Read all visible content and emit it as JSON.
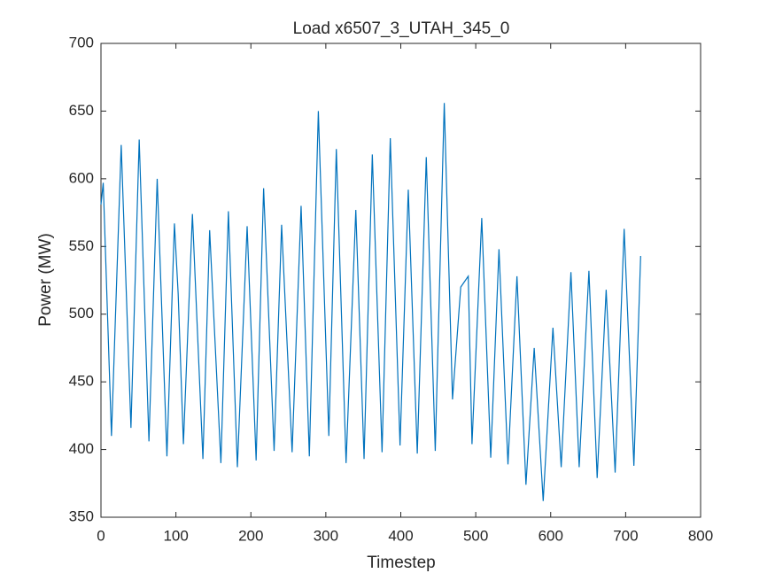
{
  "chart_data": {
    "type": "line",
    "title": "Load x6507_3_UTAH_345_0",
    "xlabel": "Timestep",
    "ylabel": "Power (MW)",
    "x": [
      0,
      3,
      14,
      27,
      40,
      51,
      64,
      75,
      88,
      98,
      103,
      110,
      122,
      136,
      145,
      160,
      170,
      182,
      195,
      207,
      217,
      231,
      241,
      255,
      267,
      278,
      290,
      304,
      314,
      327,
      340,
      351,
      362,
      375,
      386,
      399,
      410,
      422,
      434,
      446,
      458,
      469,
      480,
      490,
      495,
      508,
      520,
      531,
      543,
      555,
      567,
      578,
      590,
      603,
      614,
      627,
      638,
      651,
      662,
      674,
      686,
      698,
      711,
      720
    ],
    "series": [
      {
        "name": "Load",
        "color": "#0072bd",
        "values": [
          581,
          597,
          410,
          625,
          416,
          629,
          406,
          600,
          395,
          567,
          515,
          404,
          574,
          393,
          562,
          390,
          576,
          387,
          565,
          392,
          593,
          399,
          566,
          398,
          580,
          395,
          650,
          410,
          622,
          390,
          577,
          393,
          618,
          398,
          630,
          403,
          592,
          397,
          616,
          399,
          656,
          437,
          520,
          528,
          404,
          571,
          394,
          548,
          389,
          528,
          374,
          475,
          362,
          490,
          387,
          531,
          387,
          532,
          379,
          518,
          383,
          563,
          388,
          543
        ]
      }
    ],
    "xlim": [
      0,
      800
    ],
    "xticks": [
      0,
      100,
      200,
      300,
      400,
      500,
      600,
      700,
      800
    ],
    "ylim": [
      350,
      700
    ],
    "yticks": [
      350,
      400,
      450,
      500,
      550,
      600,
      650,
      700
    ]
  }
}
